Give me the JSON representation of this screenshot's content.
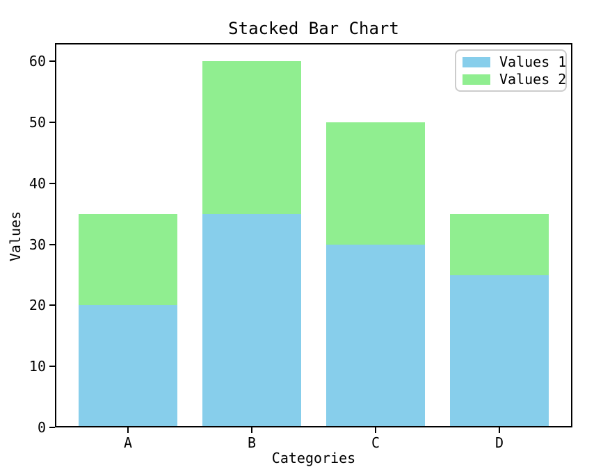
{
  "chart_data": {
    "type": "bar",
    "stacked": true,
    "title": "Stacked Bar Chart",
    "xlabel": "Categories",
    "ylabel": "Values",
    "categories": [
      "A",
      "B",
      "C",
      "D"
    ],
    "series": [
      {
        "name": "Values 1",
        "color": "#87CEEB",
        "values": [
          20,
          35,
          30,
          25
        ]
      },
      {
        "name": "Values 2",
        "color": "#90EE90",
        "values": [
          15,
          25,
          20,
          10
        ]
      }
    ],
    "totals": [
      35,
      60,
      50,
      35
    ],
    "ylim": [
      0,
      63
    ],
    "yticks": [
      0,
      10,
      20,
      30,
      40,
      50,
      60
    ],
    "bar_width_fraction": 0.8,
    "grid": false,
    "legend_position": "upper right",
    "colors": {
      "spine": "#000000",
      "text": "#000000",
      "legend_border": "#cccccc",
      "background": "#ffffff"
    }
  }
}
